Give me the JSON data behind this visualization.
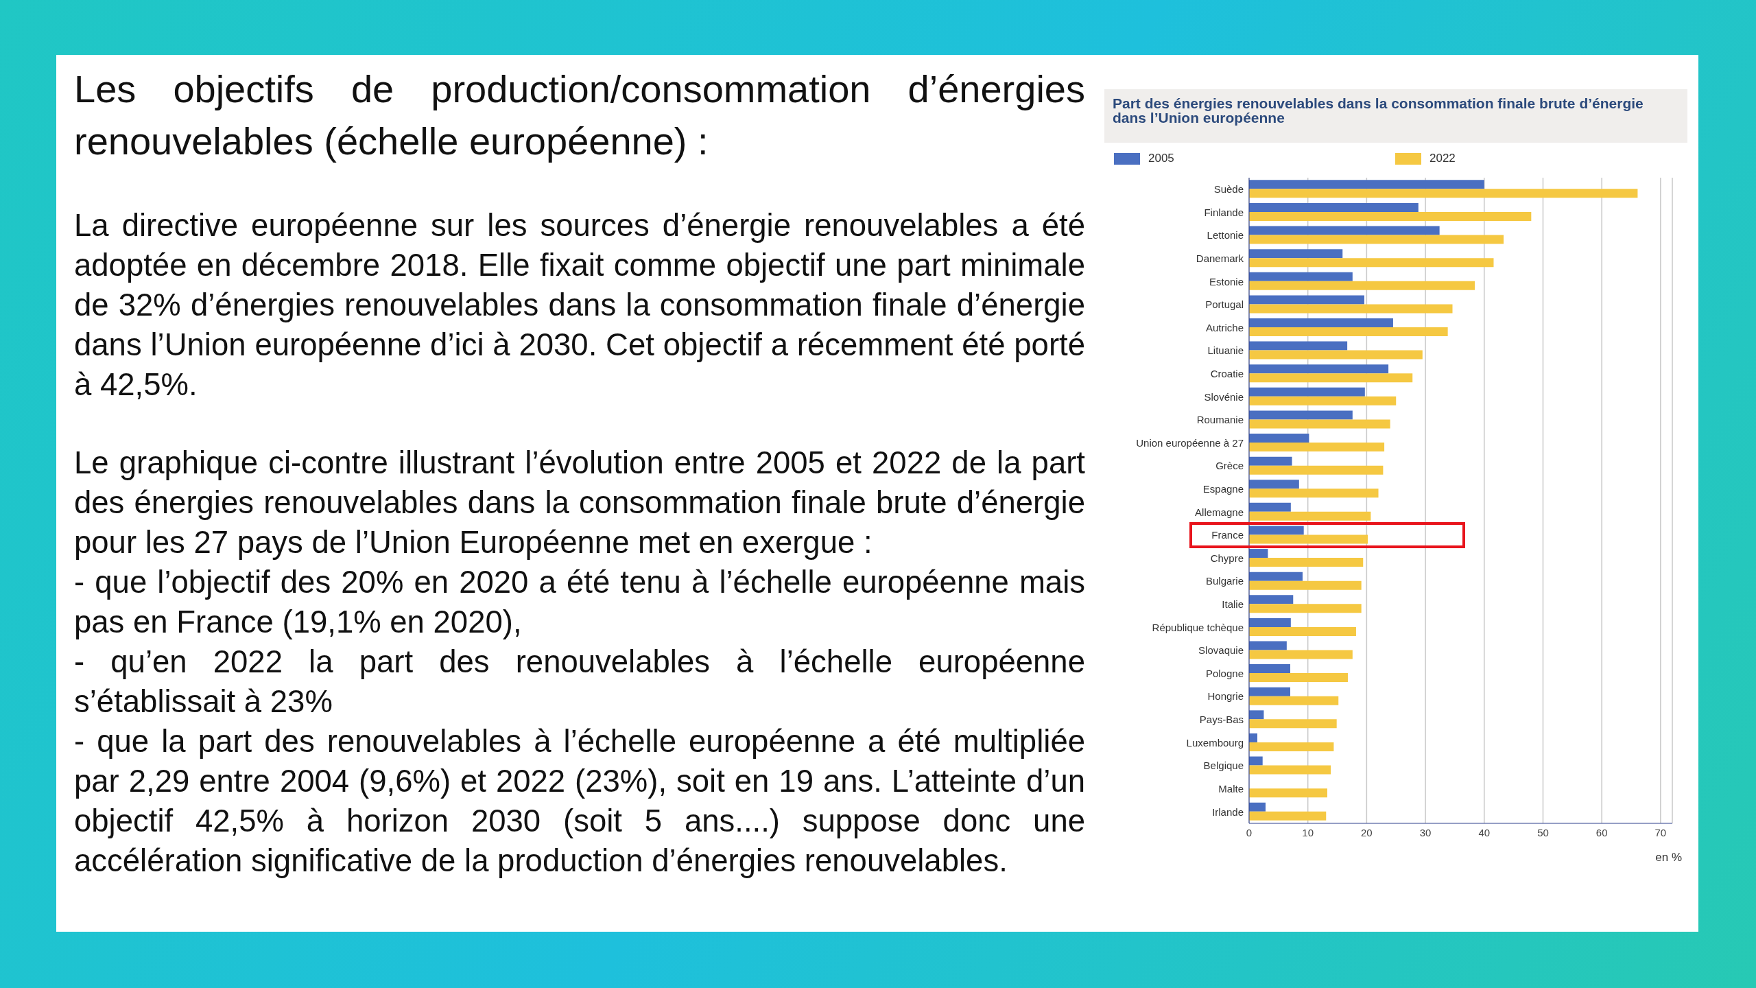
{
  "chart_data": {
    "type": "bar",
    "orientation": "horizontal",
    "title": "Part des énergies renouvelables dans la consommation finale brute d’énergie dans l’Union européenne",
    "xlabel": "en %",
    "categories": [
      "Suède",
      "Finlande",
      "Lettonie",
      "Danemark",
      "Estonie",
      "Portugal",
      "Autriche",
      "Lituanie",
      "Croatie",
      "Slovénie",
      "Roumanie",
      "Union européenne à 27",
      "Grèce",
      "Espagne",
      "Allemagne",
      "France",
      "Chypre",
      "Bulgarie",
      "Italie",
      "République tchèque",
      "Slovaquie",
      "Pologne",
      "Hongrie",
      "Pays-Bas",
      "Luxembourg",
      "Belgique",
      "Malte",
      "Irlande"
    ],
    "series": [
      {
        "name": "2005",
        "color": "#4a6fc1",
        "values": [
          40.0,
          28.8,
          32.4,
          15.9,
          17.6,
          19.6,
          24.5,
          16.7,
          23.7,
          19.7,
          17.6,
          10.2,
          7.3,
          8.5,
          7.1,
          9.3,
          3.2,
          9.1,
          7.5,
          7.1,
          6.4,
          7.0,
          7.0,
          2.5,
          1.4,
          2.3,
          null,
          2.8
        ]
      },
      {
        "name": "2022",
        "color": "#f5c842",
        "values": [
          66.1,
          48.0,
          43.3,
          41.6,
          38.4,
          34.6,
          33.8,
          29.5,
          27.8,
          25.0,
          24.0,
          23.0,
          22.8,
          22.0,
          20.7,
          20.2,
          19.4,
          19.1,
          19.1,
          18.2,
          17.6,
          16.8,
          15.2,
          14.9,
          14.4,
          13.9,
          13.3,
          13.1
        ]
      }
    ],
    "xlim": [
      0,
      72
    ],
    "xticks": [
      0,
      10,
      20,
      30,
      40,
      50,
      60,
      70
    ],
    "grid": "x",
    "legend": "top left",
    "annotations": [
      "Les objectifs de production/consommation d’énergies renouvelables (échelle européenne) :",
      "La directive européenne sur les sources d’énergie renouvelables a été adoptée en décembre 2018. Elle fixait comme objectif une part minimale de 32% d’énergies renouvelables dans la consommation finale d’énergie dans l’Union européenne d’ici à 2030. Cet objectif a récemment été porté à 42,5%.",
      "Le graphique ci-contre illustrant l’évolution entre 2005 et 2022 de la part des énergies renouvelables dans la consommation finale brute d’énergie pour les 27 pays de l’Union Européenne met en exergue :",
      "- que l’objectif des 20% en 2020 a été tenu à l’échelle européenne mais pas en France (19,1% en 2020),",
      "- qu’en 2022 la part des renouvelables à l’échelle européenne s’établissait à 23%",
      "- que la part des renouvelables à l’échelle européenne a été multipliée par 2,29 entre 2004 (9,6%) et 2022 (23%), soit en 19 ans. L’atteinte d’un objectif 42,5% à horizon 2030 (soit 5 ans....) suppose donc une accélération significative de la production d’énergies renouvelables."
    ]
  }
}
